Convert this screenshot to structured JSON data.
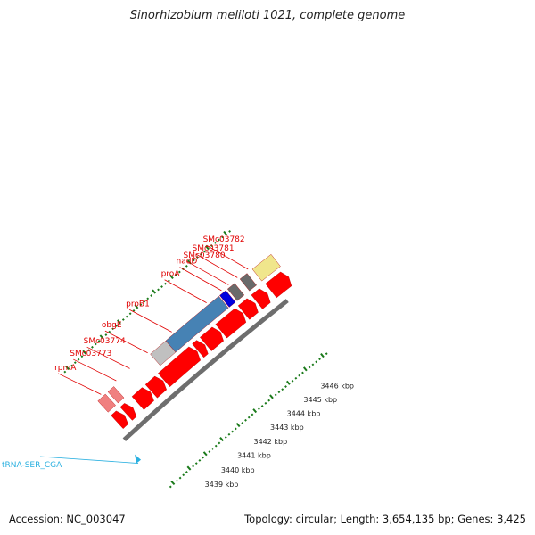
{
  "title": "Sinorhizobium meliloti 1021, complete genome",
  "footer": {
    "accession": "Accession: NC_003047",
    "topology": "Topology: circular; Length: 3,654,135 bp; Genes: 3,425"
  },
  "gene_labels": [
    "rpmA",
    "SMc03773",
    "SMc03774",
    "obgE",
    "proB1",
    "proA",
    "nadD",
    "SMc03780",
    "SMc03781",
    "SMc03782"
  ],
  "kbp_labels": [
    "3439 kbp",
    "3440 kbp",
    "3441 kbp",
    "3442 kbp",
    "3443 kbp",
    "3444 kbp",
    "3445 kbp",
    "3446 kbp"
  ],
  "trna_label": "tRNA-SER_CGA",
  "colors": {
    "gene_red": "#ff0000",
    "label_red": "#e00000",
    "light_red": "#f08080",
    "light_gray": "#c0c0c0",
    "steel_blue": "#4682b4",
    "blue": "#0000dd",
    "dark_gray": "#6a6a6a",
    "khaki": "#f0e68c",
    "tick_green": "#1a7a1a",
    "backbone": "#808080",
    "trna_cyan": "#2ab0e0"
  }
}
